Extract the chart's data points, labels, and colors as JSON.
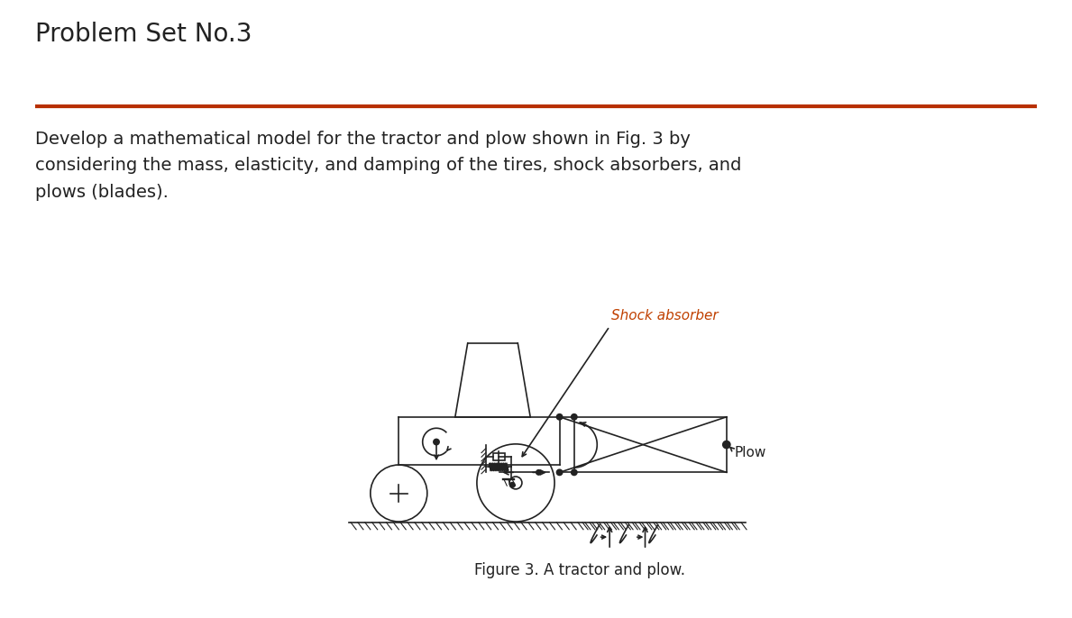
{
  "title": "Problem Set No.3",
  "title_fontsize": 20,
  "title_color": "#222222",
  "divider_color": "#b83000",
  "body_line1": "Develop a mathematical model for the tractor and plow shown in Fig. 3 by",
  "body_line2": "considering the mass, elasticity, and damping of the tires, shock absorbers, and",
  "body_line3": "plows (blades).",
  "body_fontsize": 14,
  "body_color": "#222222",
  "caption": "Figure 3. A tractor and plow.",
  "caption_fontsize": 12,
  "shock_label": "Shock absorber",
  "shock_color": "#c04000",
  "plow_label": "Plow",
  "draw_color": "#222222",
  "bg_color": "#ffffff",
  "fig_width": 11.89,
  "fig_height": 6.86,
  "fig_dpi": 100
}
